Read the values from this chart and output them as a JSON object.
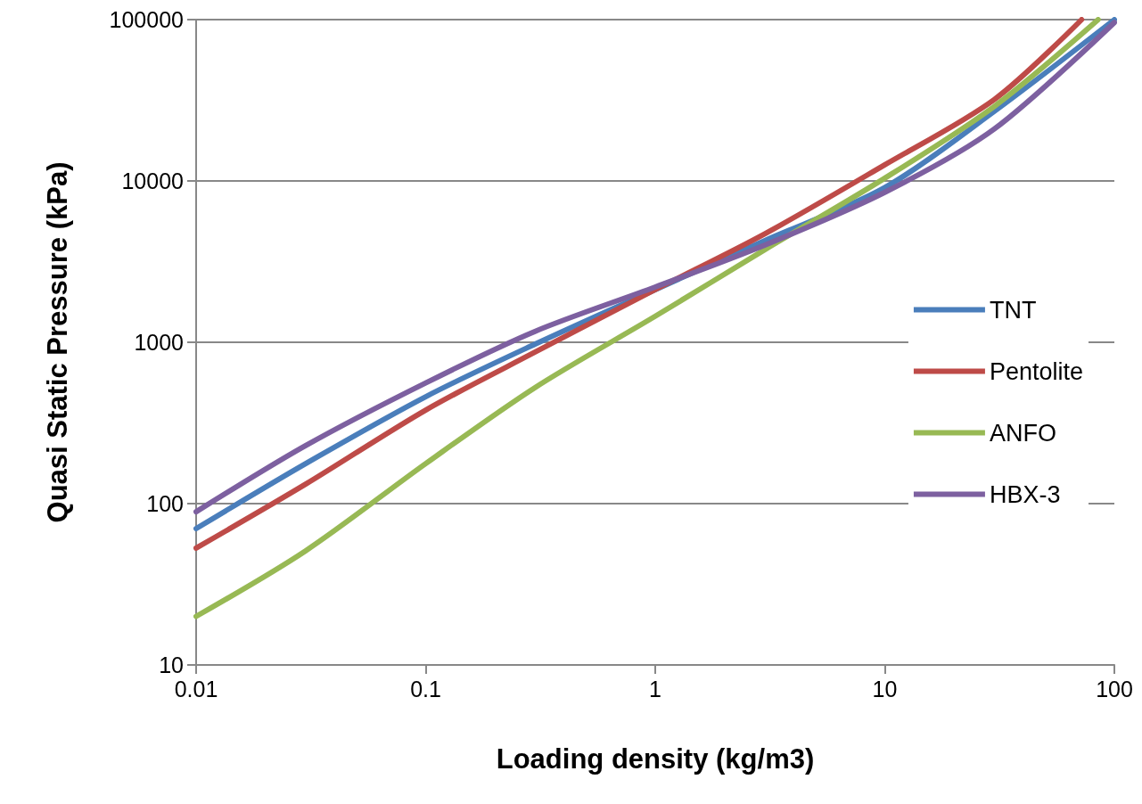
{
  "chart_data": {
    "type": "line",
    "xlabel": "Loading density (kg/m3)",
    "ylabel": "Quasi Static Pressure (kPa)",
    "log": "xy",
    "xlim": [
      0.01,
      100
    ],
    "xticks": [
      0.01,
      0.1,
      1,
      10,
      100
    ],
    "ylim": [
      10,
      100000
    ],
    "yticks": [
      10,
      100,
      1000,
      10000,
      100000
    ],
    "grid": "y",
    "legend": "right",
    "marker": "none",
    "line_style": "solid",
    "series": [
      {
        "name": "TNT",
        "color": "#4a7ebb",
        "x": [
          0.01,
          0.03,
          0.1,
          0.3,
          1,
          3,
          10,
          30,
          100
        ],
        "values": [
          70,
          177,
          460,
          975,
          2120,
          4270,
          9100,
          27000,
          100000
        ]
      },
      {
        "name": "Pentolite",
        "color": "#be4b48",
        "x": [
          0.01,
          0.03,
          0.1,
          0.3,
          1,
          3,
          10,
          30,
          72
        ],
        "values": [
          53,
          132,
          380,
          870,
          2120,
          4700,
          12600,
          32000,
          100000
        ]
      },
      {
        "name": "ANFO",
        "color": "#98b954",
        "x": [
          0.01,
          0.03,
          0.1,
          0.3,
          1,
          3,
          10,
          30,
          85
        ],
        "values": [
          20,
          51,
          177,
          525,
          1450,
          3750,
          10400,
          29000,
          100000
        ]
      },
      {
        "name": "HBX-3",
        "color": "#7d60a0",
        "x": [
          0.01,
          0.03,
          0.1,
          0.3,
          1,
          3,
          10,
          30,
          100
        ],
        "values": [
          89,
          229,
          560,
          1170,
          2200,
          4000,
          8500,
          21000,
          96000
        ]
      }
    ]
  }
}
